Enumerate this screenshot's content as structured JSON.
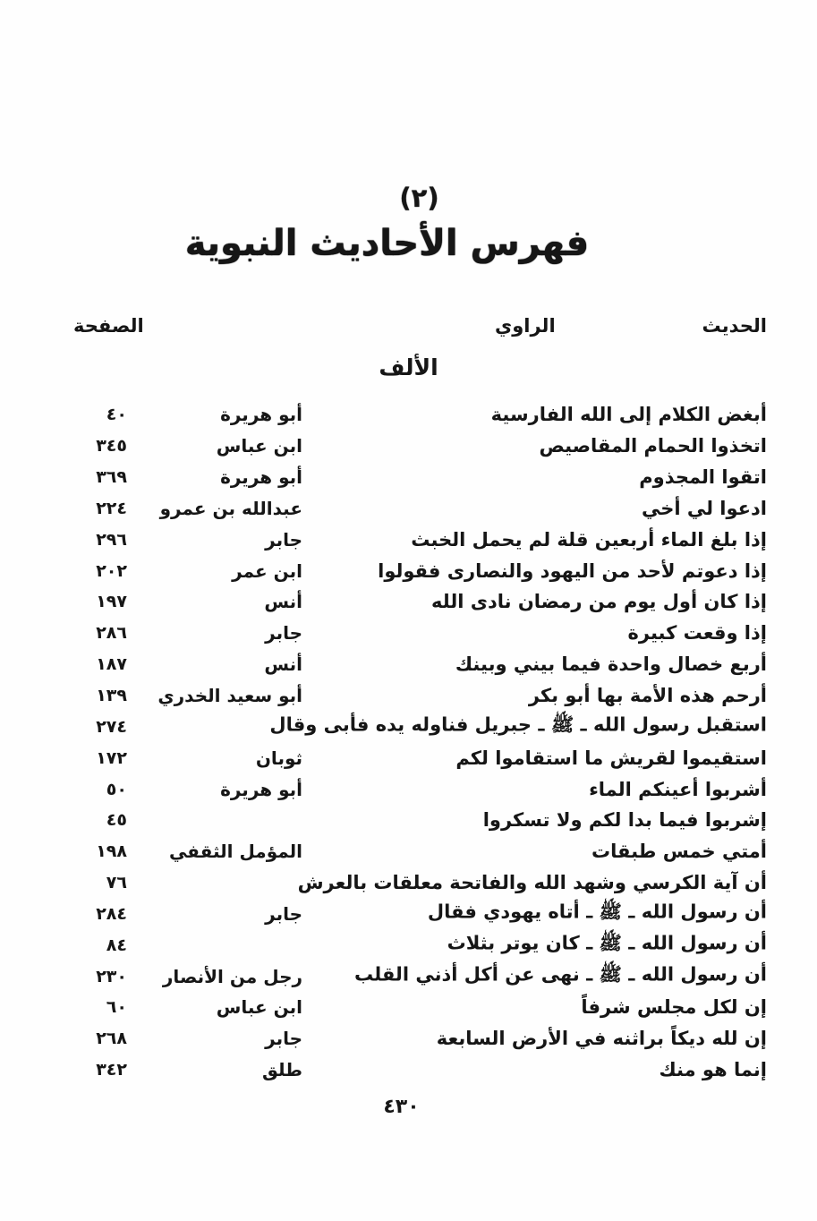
{
  "colors": {
    "background": "#fefefe",
    "text": "#161616"
  },
  "page": {
    "section_number": "(٢)",
    "title": "فهرس الأحاديث النبوية",
    "section_letter": "الألف",
    "footer_page_number": "٤٣٠"
  },
  "table": {
    "headers": {
      "hadith": "الحديث",
      "narrator": "الراوي",
      "page": "الصفحة"
    },
    "rows": [
      {
        "hadith": "أبغض الكلام إلى الله الفارسية",
        "narrator": "أبو هريرة",
        "page": "٤٠"
      },
      {
        "hadith": "اتخذوا الحمام المقاصيص",
        "narrator": "ابن عباس",
        "page": "٣٤٥"
      },
      {
        "hadith": "اتقوا المجذوم",
        "narrator": "أبو هريرة",
        "page": "٣٦٩"
      },
      {
        "hadith": "ادعوا لي أخي",
        "narrator": "عبدالله بن عمرو",
        "page": "٢٢٤"
      },
      {
        "hadith": "إذا بلغ الماء أربعين قلة لم يحمل الخبث",
        "narrator": "جابر",
        "page": "٢٩٦"
      },
      {
        "hadith": "إذا دعوتم لأحد من اليهود والنصارى فقولوا",
        "narrator": "ابن عمر",
        "page": "٢٠٢"
      },
      {
        "hadith": "إذا كان أول يوم من رمضان نادى الله",
        "narrator": "أنس",
        "page": "١٩٧"
      },
      {
        "hadith": "إذا وقعت كبيرة",
        "narrator": "جابر",
        "page": "٢٨٦"
      },
      {
        "hadith": "أربع خصال واحدة فيما بيني وبينك",
        "narrator": "أنس",
        "page": "١٨٧"
      },
      {
        "hadith": "أرحم هذه الأمة بها أبو بكر",
        "narrator": "أبو سعيد الخدري",
        "page": "١٣٩"
      },
      {
        "hadith": "استقبل رسول الله ـ ﷺ ـ جبريل فناوله يده فأبى وقال",
        "narrator": "",
        "page": "٢٧٤"
      },
      {
        "hadith": "استقيموا لقريش ما استقاموا لكم",
        "narrator": "ثوبان",
        "page": "١٧٢"
      },
      {
        "hadith": "أشربوا أعينكم الماء",
        "narrator": "أبو هريرة",
        "page": "٥٠"
      },
      {
        "hadith": "إشربوا فيما بدا لكم ولا تسكروا",
        "narrator": "",
        "page": "٤٥"
      },
      {
        "hadith": "أمتي خمس طبقات",
        "narrator": "المؤمل الثقفي",
        "page": "١٩٨"
      },
      {
        "hadith": "أن آية الكرسي وشهد الله والفاتحة معلقات بالعرش",
        "narrator": "",
        "page": "٧٦"
      },
      {
        "hadith": "أن رسول الله ـ ﷺ ـ أتاه يهودي فقال",
        "narrator": "جابر",
        "page": "٢٨٤"
      },
      {
        "hadith": "أن رسول الله ـ ﷺ ـ كان يوتر بثلاث",
        "narrator": "",
        "page": "٨٤"
      },
      {
        "hadith": "أن رسول الله ـ ﷺ ـ نهى عن أكل أذني القلب",
        "narrator": "رجل من الأنصار",
        "page": "٢٣٠"
      },
      {
        "hadith": "إن لكل مجلس شرفاً",
        "narrator": "ابن عباس",
        "page": "٦٠"
      },
      {
        "hadith": "إن لله ديكاً براثنه في الأرض السابعة",
        "narrator": "جابر",
        "page": "٢٦٨"
      },
      {
        "hadith": "إنما هو منك",
        "narrator": "طلق",
        "page": "٣٤٢"
      }
    ]
  }
}
